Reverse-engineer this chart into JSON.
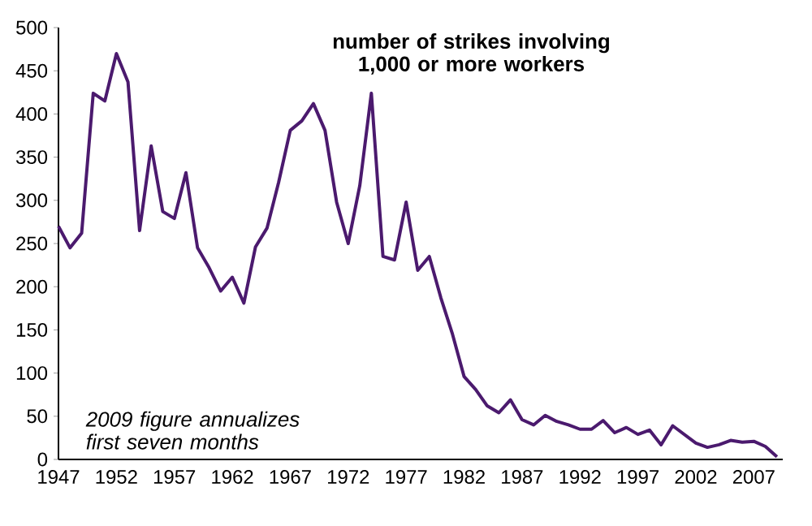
{
  "chart_data": {
    "type": "line",
    "title": "number of strikes involving 1,000 or more workers",
    "annotations": [
      "2009 figure annualizes first seven months"
    ],
    "x": [
      1947,
      1948,
      1949,
      1950,
      1951,
      1952,
      1953,
      1954,
      1955,
      1956,
      1957,
      1958,
      1959,
      1960,
      1961,
      1962,
      1963,
      1964,
      1965,
      1966,
      1967,
      1968,
      1969,
      1970,
      1971,
      1972,
      1973,
      1974,
      1975,
      1976,
      1977,
      1978,
      1979,
      1980,
      1981,
      1982,
      1983,
      1984,
      1985,
      1986,
      1987,
      1988,
      1989,
      1990,
      1991,
      1992,
      1993,
      1994,
      1995,
      1996,
      1997,
      1998,
      1999,
      2000,
      2001,
      2002,
      2003,
      2004,
      2005,
      2006,
      2007,
      2008,
      2009
    ],
    "values": [
      270,
      245,
      262,
      424,
      415,
      470,
      437,
      265,
      363,
      287,
      279,
      332,
      245,
      222,
      195,
      211,
      181,
      246,
      268,
      321,
      381,
      392,
      412,
      381,
      298,
      250,
      317,
      424,
      235,
      231,
      298,
      219,
      235,
      187,
      145,
      96,
      81,
      62,
      54,
      69,
      46,
      40,
      51,
      44,
      40,
      35,
      35,
      45,
      31,
      37,
      29,
      34,
      17,
      39,
      29,
      19,
      14,
      17,
      22,
      20,
      21,
      15,
      3
    ],
    "color": "#4b1a6e",
    "marker": "none",
    "xlim": [
      1947,
      2009.5
    ],
    "ylim": [
      0,
      500
    ],
    "xticks": [
      1947,
      1952,
      1957,
      1962,
      1967,
      1972,
      1977,
      1982,
      1987,
      1992,
      1997,
      2002,
      2007
    ],
    "yticks": [
      0,
      50,
      100,
      150,
      200,
      250,
      300,
      350,
      400,
      450,
      500
    ]
  }
}
